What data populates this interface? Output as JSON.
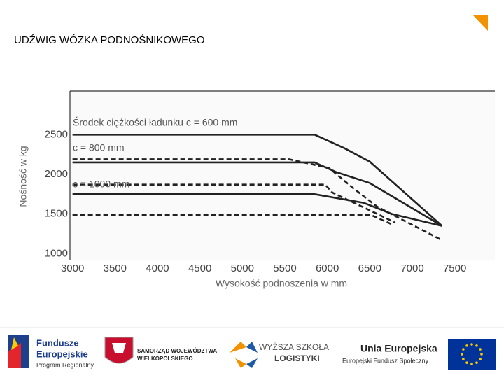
{
  "header": {
    "title": "UDŹWIG WÓZKA PODNOŚNIKOWEGO"
  },
  "chart_data": {
    "type": "line",
    "y_label": "Nośność w kg",
    "x_label": "Wysokość podnoszenia w mm",
    "annotations": [
      "Środek ciężkości ładunku c = 600 mm",
      "c = 800 mm",
      "c = 1000 mm"
    ],
    "xlim": [
      2970,
      7970
    ],
    "ylim": [
      1000,
      3050
    ],
    "xticks": [
      3000,
      3500,
      4000,
      4500,
      5000,
      5500,
      6000,
      6500,
      7000,
      7500
    ],
    "yticks": [
      1000,
      1500,
      2000,
      2500
    ],
    "grid": false,
    "series": [
      {
        "color": "#222222",
        "dash": false,
        "x": [
          3000,
          5850,
          6200,
          6500,
          7350
        ],
        "values": [
          2500,
          2500,
          2330,
          2160,
          1350
        ]
      },
      {
        "color": "#222222",
        "dash": false,
        "x": [
          3000,
          5850,
          6100,
          6500,
          7350
        ],
        "values": [
          2150,
          2150,
          2030,
          1890,
          1350
        ]
      },
      {
        "color": "#222222",
        "dash": false,
        "x": [
          3000,
          5850,
          6430,
          6760,
          7350
        ],
        "values": [
          1750,
          1750,
          1640,
          1500,
          1350
        ]
      },
      {
        "color": "#222222",
        "dash": true,
        "x": [
          3000,
          5550,
          6020,
          6300,
          6590,
          7350
        ],
        "values": [
          2190,
          2190,
          2080,
          1830,
          1590,
          1170
        ]
      },
      {
        "color": "#222222",
        "dash": true,
        "x": [
          3000,
          5975,
          6060,
          6590,
          6800
        ],
        "values": [
          1870,
          1870,
          1770,
          1500,
          1390
        ]
      },
      {
        "color": "#222222",
        "dash": true,
        "x": [
          3000,
          6510,
          6760
        ],
        "values": [
          1490,
          1490,
          1370
        ]
      }
    ]
  },
  "footer": {
    "fe_1": "Fundusze",
    "fe_2": "Europejskie",
    "fe_3": "Program Regionalny",
    "sw_1": "SAMORZĄD WOJEWÓDZTWA",
    "sw_2": "WIELKOPOLSKIEGO",
    "wsl_1": "WYŻSZA SZKOŁA",
    "wsl_2": "LOGISTYKI",
    "ue_1": "Unia Europejska",
    "ue_2": "Europejski Fundusz Społeczny"
  }
}
